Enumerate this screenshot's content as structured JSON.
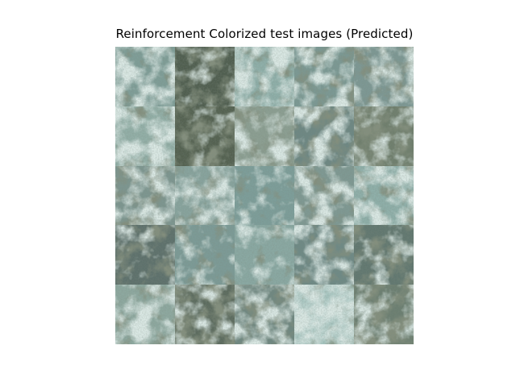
{
  "figure": {
    "title": "Reinforcement Colorized test images (Predicted)"
  },
  "grid": {
    "rows": 5,
    "cols": 5,
    "palette": {
      "dark": "#3b4634",
      "mid": "#6e8a86",
      "light": "#b8d3cc",
      "pale": "#d9e6d9"
    },
    "tiles": [
      {
        "base": "#7f9e98",
        "light": 0.55,
        "dark": 0.15
      },
      {
        "base": "#4f5d4e",
        "light": 0.25,
        "dark": 0.55
      },
      {
        "base": "#8fb0aa",
        "light": 0.6,
        "dark": 0.25
      },
      {
        "base": "#7b9994",
        "light": 0.55,
        "dark": 0.35
      },
      {
        "base": "#7d9894",
        "light": 0.5,
        "dark": 0.4
      },
      {
        "base": "#93b0a8",
        "light": 0.65,
        "dark": 0.1
      },
      {
        "base": "#53604f",
        "light": 0.1,
        "dark": 0.5
      },
      {
        "base": "#8c9f92",
        "light": 0.5,
        "dark": 0.35
      },
      {
        "base": "#6d8783",
        "light": 0.45,
        "dark": 0.45
      },
      {
        "base": "#6f7e6c",
        "light": 0.35,
        "dark": 0.55
      },
      {
        "base": "#7d9690",
        "light": 0.55,
        "dark": 0.4
      },
      {
        "base": "#88a49e",
        "light": 0.55,
        "dark": 0.35
      },
      {
        "base": "#7d9e9a",
        "light": 0.2,
        "dark": 0.05
      },
      {
        "base": "#7f9993",
        "light": 0.55,
        "dark": 0.35
      },
      {
        "base": "#8fb0aa",
        "light": 0.6,
        "dark": 0.3
      },
      {
        "base": "#5d706b",
        "light": 0.2,
        "dark": 0.4
      },
      {
        "base": "#7c9b97",
        "light": 0.25,
        "dark": 0.1
      },
      {
        "base": "#8aa9a3",
        "light": 0.15,
        "dark": 0.05
      },
      {
        "base": "#6e8985",
        "light": 0.4,
        "dark": 0.4
      },
      {
        "base": "#61776f",
        "light": 0.3,
        "dark": 0.45
      },
      {
        "base": "#8ea9a0",
        "light": 0.6,
        "dark": 0.25
      },
      {
        "base": "#5b6a5d",
        "light": 0.35,
        "dark": 0.6
      },
      {
        "base": "#6f8780",
        "light": 0.55,
        "dark": 0.5
      },
      {
        "base": "#a8c7c2",
        "light": 0.75,
        "dark": 0.05
      },
      {
        "base": "#6b7e70",
        "light": 0.35,
        "dark": 0.6
      }
    ]
  }
}
